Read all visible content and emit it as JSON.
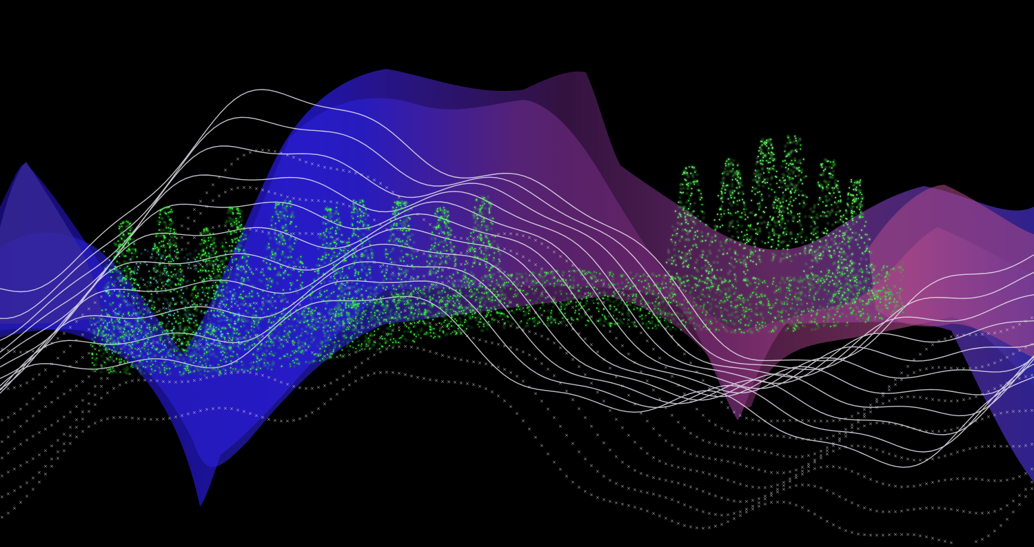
{
  "scene": {
    "background_color": "#000000",
    "elements": [
      "blue-purple-terrain-surface",
      "green-point-cloud-trees",
      "white-contour-lines",
      "white-cross-markers"
    ]
  },
  "colors": {
    "surface_blue": "#2a1fd6",
    "surface_deep_blue": "#1a0f8a",
    "surface_purple": "#6a2a8a",
    "surface_pink": "#b04a8a",
    "surface_magenta": "#7a2a6a",
    "points_green": "#3cff3c",
    "points_bright_green": "#7dff7d",
    "points_cyan": "#5fe8e8",
    "contour_white": "#e8e4ee",
    "marker_white": "#d8d8d8"
  }
}
